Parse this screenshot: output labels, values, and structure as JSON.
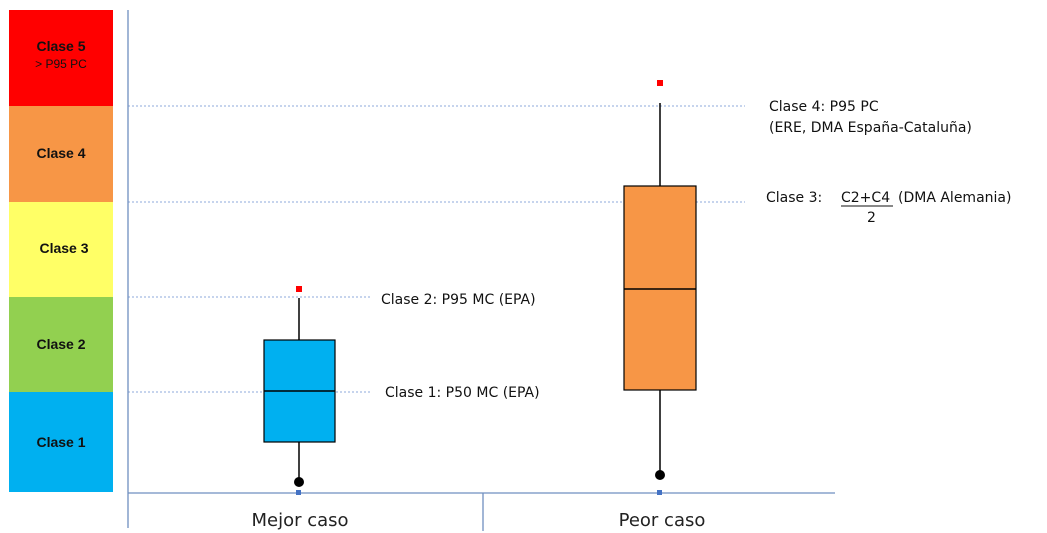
{
  "classes": [
    {
      "label": "Clase 5",
      "sublabel": "> P95 PC",
      "color": "#FF0000"
    },
    {
      "label": "Clase 4",
      "sublabel": "",
      "color": "#F79646"
    },
    {
      "label": "Clase 3",
      "sublabel": "",
      "color": "#FFFF66"
    },
    {
      "label": "Clase 2",
      "sublabel": "",
      "color": "#92D050"
    },
    {
      "label": "Clase 1",
      "sublabel": "",
      "color": "#00B0F0"
    }
  ],
  "annotations": {
    "clase4_line1": "Clase 4: P95 PC",
    "clase4_line2": "(ERE, DMA España-Cataluña)",
    "clase3_prefix": "Clase 3:",
    "clase3_numerator": "C2+C4",
    "clase3_suffix": "(DMA Alemania)",
    "clase3_denominator": "2",
    "clase2": "Clase 2: P95 MC (EPA)",
    "clase1": "Clase 1: P50 MC (EPA)"
  },
  "categories": [
    "Mejor caso",
    "Peor caso"
  ],
  "colors": {
    "mejor_box": "#00B0F0",
    "peor_box": "#F79646",
    "gridline": "#8EA9DB",
    "axis": "#6F8FC0",
    "outlier_high": "#FF0000",
    "outlier_low": "#000000",
    "low_marker": "#4472C4"
  }
}
